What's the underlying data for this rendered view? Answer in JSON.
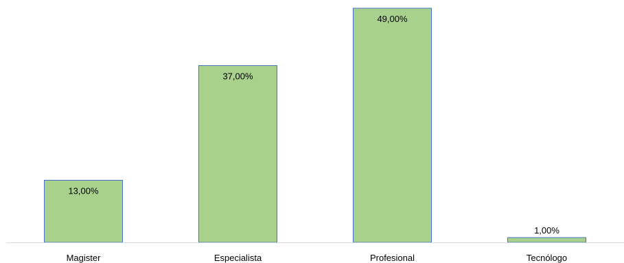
{
  "chart_data": {
    "type": "bar",
    "categories": [
      "Magister",
      "Especialista",
      "Profesional",
      "Tecnólogo"
    ],
    "values": [
      13,
      37,
      49,
      1
    ],
    "data_labels": [
      "13,00%",
      "37,00%",
      "49,00%",
      "1,00%"
    ],
    "value_unit": "%",
    "title": "",
    "xlabel": "",
    "ylabel": "",
    "ylim": [
      0,
      50
    ],
    "grid": false,
    "legend": "none",
    "bar_fill": "#a9d18e",
    "bar_stroke": "#4472c4",
    "axis_color": "#d9d9d9"
  }
}
